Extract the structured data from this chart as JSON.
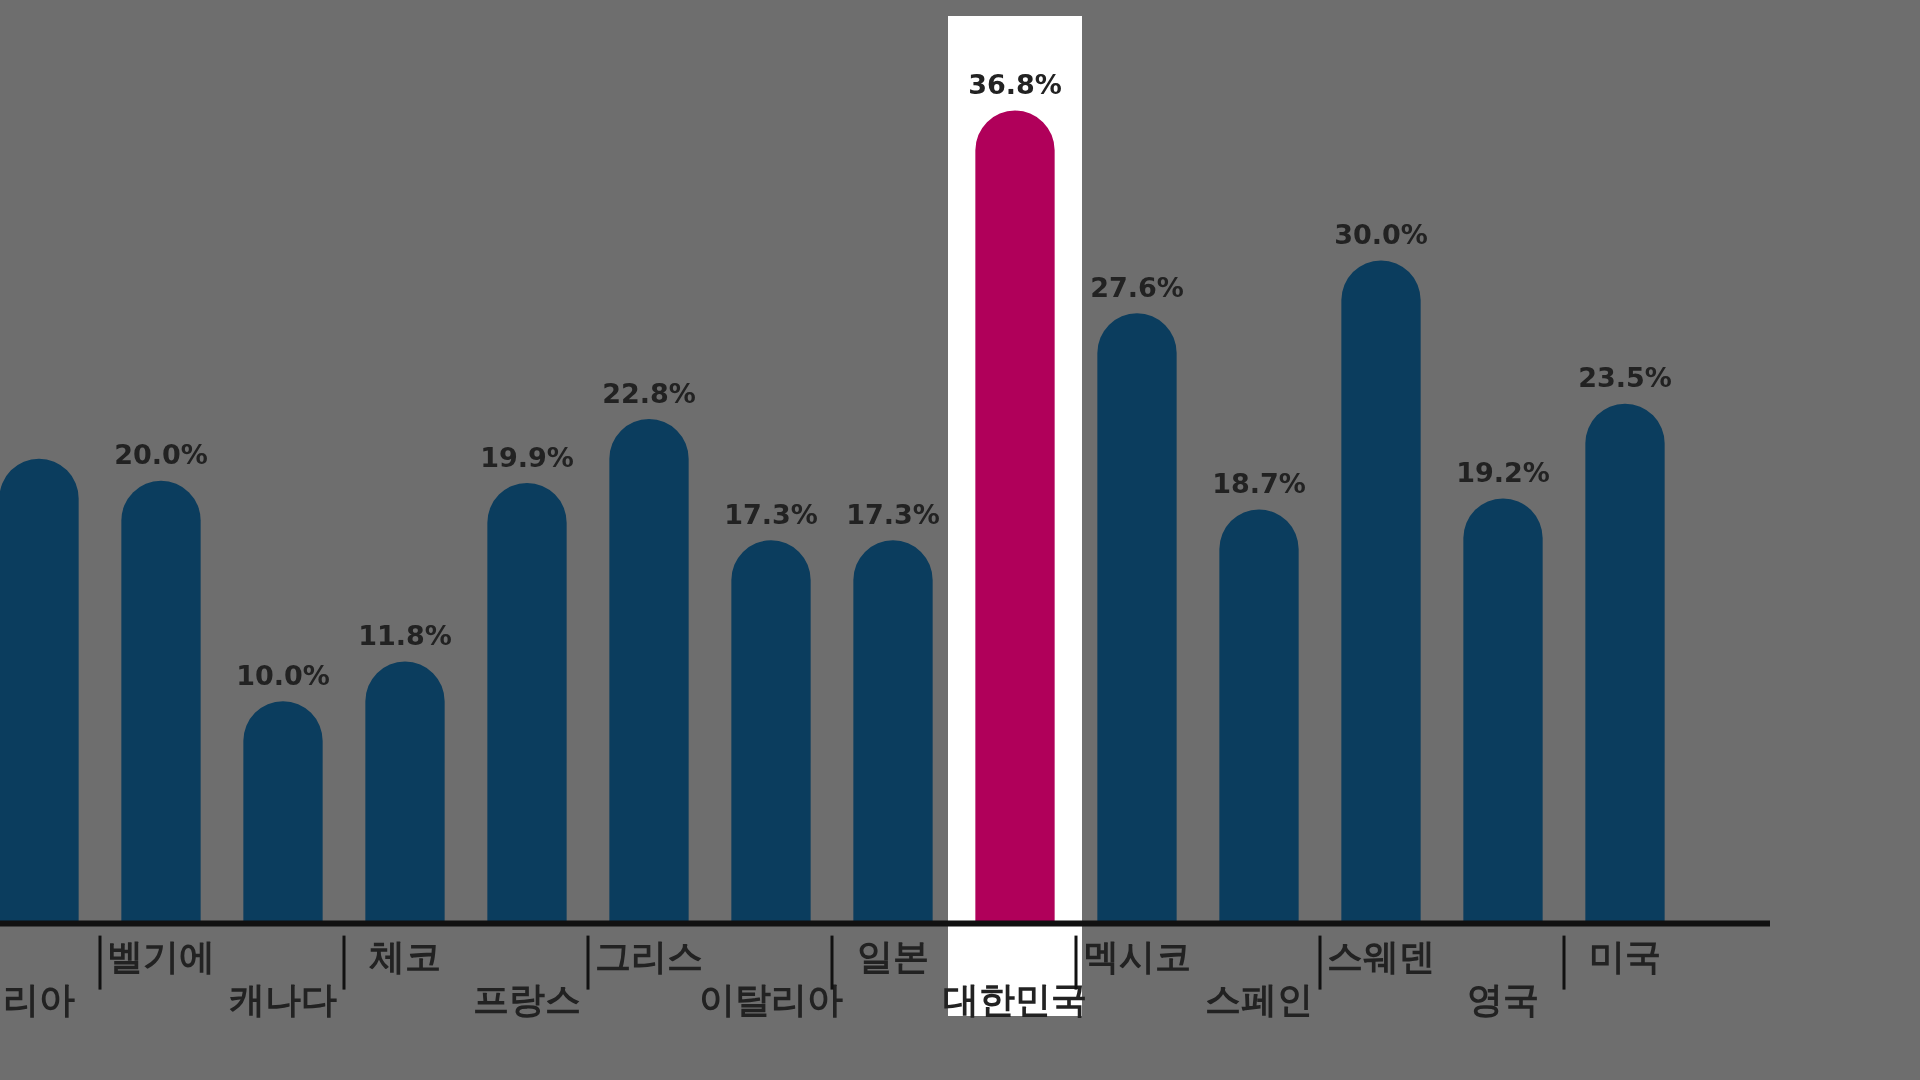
{
  "chart_data": {
    "type": "bar",
    "categories": [
      "리아",
      "벨기에",
      "캐나다",
      "체코",
      "프랑스",
      "그리스",
      "이탈리아",
      "일본",
      "대한민국",
      "멕시코",
      "스페인",
      "스웨덴",
      "영국",
      "미국"
    ],
    "values": [
      21.0,
      20.0,
      10.0,
      11.8,
      19.9,
      22.8,
      17.3,
      17.3,
      36.8,
      27.6,
      18.7,
      30.0,
      19.2,
      23.5
    ],
    "value_labels": [
      null,
      "20.0%",
      "10.0%",
      "11.8%",
      "19.9%",
      "22.8%",
      "17.3%",
      "17.3%",
      "36.8%",
      "27.6%",
      "18.7%",
      "30.0%",
      "19.2%",
      "23.5%"
    ],
    "colors": [
      "#0b3d5e",
      "#0b3d5e",
      "#0b3d5e",
      "#0b3d5e",
      "#0b3d5e",
      "#0b3d5e",
      "#0b3d5e",
      "#0b3d5e",
      "#b0005a",
      "#0b3d5e",
      "#0b3d5e",
      "#0b3d5e",
      "#0b3d5e",
      "#0b3d5e"
    ],
    "bands": [
      {
        "axis": "x",
        "from": "대한민국",
        "to": "대한민국",
        "color": "#ffffff"
      }
    ],
    "grid": false,
    "legend": false
  }
}
